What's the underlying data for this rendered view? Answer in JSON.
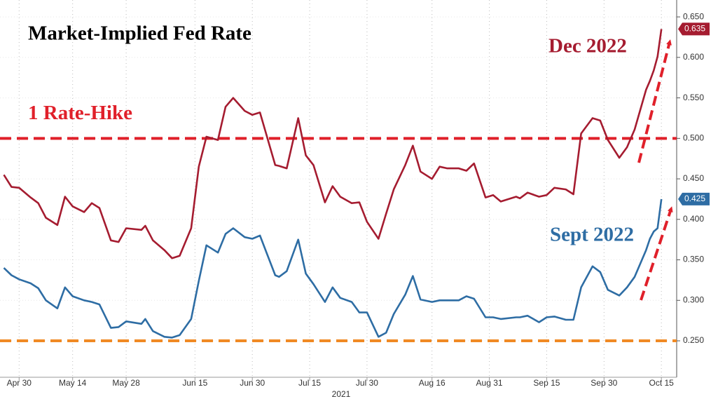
{
  "chart_data": {
    "type": "line",
    "title": "Market-Implied Fed Rate",
    "xlabel": "2021",
    "x": [
      "2021-04-26",
      "2021-04-28",
      "2021-04-30",
      "2021-05-03",
      "2021-05-05",
      "2021-05-07",
      "2021-05-10",
      "2021-05-12",
      "2021-05-14",
      "2021-05-17",
      "2021-05-19",
      "2021-05-21",
      "2021-05-24",
      "2021-05-26",
      "2021-05-28",
      "2021-06-01",
      "2021-06-02",
      "2021-06-04",
      "2021-06-07",
      "2021-06-09",
      "2021-06-11",
      "2021-06-14",
      "2021-06-16",
      "2021-06-18",
      "2021-06-21",
      "2021-06-23",
      "2021-06-25",
      "2021-06-28",
      "2021-06-30",
      "2021-07-02",
      "2021-07-06",
      "2021-07-07",
      "2021-07-09",
      "2021-07-12",
      "2021-07-14",
      "2021-07-16",
      "2021-07-19",
      "2021-07-21",
      "2021-07-23",
      "2021-07-26",
      "2021-07-28",
      "2021-07-30",
      "2021-08-02",
      "2021-08-04",
      "2021-08-06",
      "2021-08-09",
      "2021-08-11",
      "2021-08-13",
      "2021-08-16",
      "2021-08-18",
      "2021-08-20",
      "2021-08-23",
      "2021-08-25",
      "2021-08-27",
      "2021-08-30",
      "2021-09-01",
      "2021-09-03",
      "2021-09-07",
      "2021-09-08",
      "2021-09-10",
      "2021-09-13",
      "2021-09-15",
      "2021-09-17",
      "2021-09-20",
      "2021-09-22",
      "2021-09-24",
      "2021-09-27",
      "2021-09-29",
      "2021-10-01",
      "2021-10-04",
      "2021-10-06",
      "2021-10-08",
      "2021-10-11",
      "2021-10-12",
      "2021-10-13",
      "2021-10-14",
      "2021-10-15"
    ],
    "series": [
      {
        "name": "Dec 2022",
        "color": "#a51c30",
        "values": [
          0.455,
          0.44,
          0.439,
          0.427,
          0.42,
          0.402,
          0.393,
          0.428,
          0.416,
          0.409,
          0.42,
          0.414,
          0.374,
          0.372,
          0.389,
          0.387,
          0.392,
          0.374,
          0.362,
          0.352,
          0.355,
          0.389,
          0.465,
          0.502,
          0.498,
          0.539,
          0.55,
          0.534,
          0.529,
          0.532,
          0.467,
          0.466,
          0.463,
          0.525,
          0.479,
          0.467,
          0.421,
          0.441,
          0.428,
          0.42,
          0.421,
          0.397,
          0.376,
          0.407,
          0.437,
          0.467,
          0.491,
          0.459,
          0.45,
          0.465,
          0.463,
          0.463,
          0.46,
          0.469,
          0.427,
          0.43,
          0.422,
          0.428,
          0.426,
          0.433,
          0.428,
          0.43,
          0.439,
          0.437,
          0.431,
          0.506,
          0.525,
          0.522,
          0.498,
          0.476,
          0.489,
          0.511,
          0.56,
          0.571,
          0.584,
          0.601,
          0.635
        ]
      },
      {
        "name": "Sept 2022",
        "color": "#2e6da4",
        "values": [
          0.34,
          0.331,
          0.326,
          0.321,
          0.315,
          0.3,
          0.29,
          0.316,
          0.305,
          0.3,
          0.298,
          0.295,
          0.266,
          0.267,
          0.274,
          0.271,
          0.277,
          0.262,
          0.255,
          0.254,
          0.257,
          0.277,
          0.324,
          0.368,
          0.359,
          0.382,
          0.389,
          0.378,
          0.376,
          0.38,
          0.331,
          0.329,
          0.336,
          0.375,
          0.333,
          0.32,
          0.298,
          0.316,
          0.303,
          0.298,
          0.285,
          0.285,
          0.255,
          0.26,
          0.283,
          0.307,
          0.33,
          0.301,
          0.298,
          0.3,
          0.3,
          0.3,
          0.305,
          0.302,
          0.279,
          0.279,
          0.277,
          0.279,
          0.279,
          0.281,
          0.273,
          0.279,
          0.28,
          0.276,
          0.276,
          0.316,
          0.342,
          0.335,
          0.313,
          0.306,
          0.316,
          0.329,
          0.362,
          0.376,
          0.385,
          0.389,
          0.425
        ]
      }
    ],
    "reference_lines": [
      {
        "label": "1 Rate-Hike",
        "value": 0.5,
        "color": "#e0202a"
      },
      {
        "value": 0.25,
        "color": "#f08a24"
      }
    ],
    "xlim": [
      "2021-04-25",
      "2021-10-19"
    ],
    "xticks": [
      {
        "value": "2021-04-30",
        "label": "Apr 30"
      },
      {
        "value": "2021-05-14",
        "label": "May 14"
      },
      {
        "value": "2021-05-28",
        "label": "May 28"
      },
      {
        "value": "2021-06-15",
        "label": "Jun 15"
      },
      {
        "value": "2021-06-30",
        "label": "Jun 30"
      },
      {
        "value": "2021-07-15",
        "label": "Jul 15"
      },
      {
        "value": "2021-07-30",
        "label": "Jul 30"
      },
      {
        "value": "2021-08-16",
        "label": "Aug 16"
      },
      {
        "value": "2021-08-31",
        "label": "Aug 31"
      },
      {
        "value": "2021-09-15",
        "label": "Sep 15"
      },
      {
        "value": "2021-09-30",
        "label": "Sep 30"
      },
      {
        "value": "2021-10-15",
        "label": "Oct 15"
      }
    ],
    "ylim": [
      0.205,
      0.67
    ],
    "yticks": [
      {
        "value": 0.25,
        "label": "0.250"
      },
      {
        "value": 0.3,
        "label": "0.300"
      },
      {
        "value": 0.35,
        "label": "0.350"
      },
      {
        "value": 0.4,
        "label": "0.400"
      },
      {
        "value": 0.45,
        "label": "0.450"
      },
      {
        "value": 0.5,
        "label": "0.500"
      },
      {
        "value": 0.55,
        "label": "0.550"
      },
      {
        "value": 0.6,
        "label": "0.600"
      },
      {
        "value": 0.65,
        "label": "0.650"
      }
    ],
    "grid": true
  }
}
